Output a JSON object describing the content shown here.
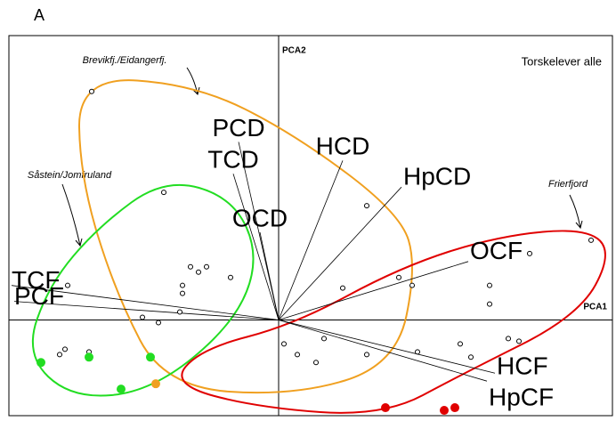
{
  "chart_data": {
    "type": "scatter",
    "panel_label": "A",
    "title": "Torskelever alle",
    "x_label": "PCA1",
    "y_label": "PCA2",
    "xlim": [
      -101,
      125
    ],
    "ylim": [
      -36,
      107
    ],
    "series": [
      {
        "color": "#000000",
        "filled": false,
        "x": [
          -70,
          -43,
          33,
          117,
          94,
          -79,
          -33,
          -30,
          -27,
          -18,
          -36,
          -36,
          24,
          45,
          50,
          -37,
          -51,
          -45,
          79,
          79,
          2,
          17,
          -80,
          -82,
          -71,
          7,
          14,
          33,
          86,
          90,
          68,
          72,
          52
        ],
        "y": [
          86,
          48,
          43,
          30,
          25,
          13,
          20,
          18,
          20,
          16,
          13,
          10,
          12,
          16,
          13,
          3,
          1,
          -1,
          13,
          6,
          -9,
          -7,
          -11,
          -13,
          -12,
          -13,
          -16,
          -13,
          -7,
          -8,
          -9,
          -14,
          -12
        ]
      },
      {
        "color": "#22dd22",
        "filled": true,
        "x": [
          -89,
          -71,
          -48,
          -59
        ],
        "y": [
          -16,
          -14,
          -14,
          -26
        ]
      },
      {
        "color": "#f0a020",
        "filled": true,
        "x": [
          -46
        ],
        "y": [
          -24
        ]
      },
      {
        "color": "#e00000",
        "filled": true,
        "x": [
          40,
          62,
          66
        ],
        "y": [
          -33,
          -34,
          -33
        ]
      }
    ],
    "loadings": {
      "labels": [
        "PCD",
        "TCD",
        "OCD",
        "HCD",
        "HpCD",
        "OCF",
        "TCF",
        "PCF",
        "HCF",
        "HpCF"
      ],
      "x": [
        -15,
        -17,
        -7,
        24,
        46,
        71,
        -100,
        -99,
        81,
        78
      ],
      "y": [
        67,
        55,
        33,
        60,
        50,
        22,
        13,
        7,
        -20,
        -23
      ]
    },
    "annotations": [
      "Brevikfj./Eidangerfj.",
      "Såstein/Jomfruland",
      "Frierfjord"
    ]
  }
}
